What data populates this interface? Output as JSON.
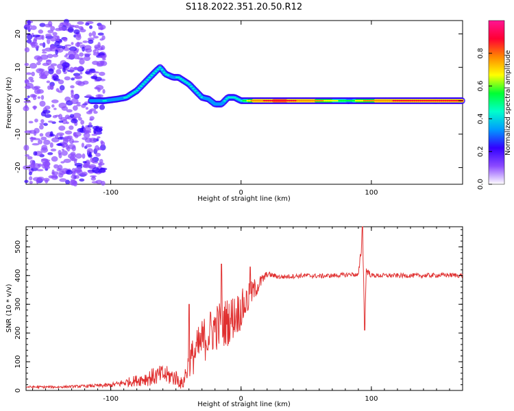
{
  "title": "S118.2022.351.20.50.R12",
  "chart_data": [
    {
      "type": "heatmap",
      "xlabel": "Height of straight line (km)",
      "ylabel": "Frequency (Hz)",
      "xlim": [
        -165,
        170
      ],
      "ylim": [
        -25,
        24
      ],
      "x_ticks": [
        -100,
        0,
        100
      ],
      "y_ticks": [
        -20,
        -10,
        0,
        10,
        20
      ],
      "colorbar": {
        "label": "Normalized spectral amplitude",
        "range": [
          0,
          1
        ],
        "ticks": [
          "0.0",
          "0.2",
          "0.4",
          "0.6",
          "0.8"
        ],
        "colormap": [
          "#ffffff",
          "#8c4bff",
          "#3300ff",
          "#0099ff",
          "#00ffcc",
          "#00ff33",
          "#ffff00",
          "#ff8800",
          "#ff0033",
          "#ff1493"
        ]
      },
      "dominant_frequency_ridge": {
        "x": [
          -115,
          -105,
          -95,
          -88,
          -80,
          -75,
          -70,
          -65,
          -62,
          -58,
          -52,
          -48,
          -44,
          -40,
          -35,
          -30,
          -25,
          -20,
          -15,
          -10,
          -5,
          0,
          10,
          30,
          60,
          85,
          90,
          120,
          170
        ],
        "y": [
          0,
          0,
          0.5,
          1,
          3,
          5,
          7,
          9,
          10,
          8,
          7,
          7,
          6,
          5,
          3,
          1,
          0.5,
          -1,
          -1,
          1,
          1,
          0,
          0,
          0,
          0,
          0,
          0,
          0,
          0
        ],
        "amplitude": [
          0.3,
          0.4,
          0.35,
          0.4,
          0.45,
          0.5,
          0.45,
          0.45,
          0.4,
          0.45,
          0.35,
          0.45,
          0.4,
          0.5,
          0.45,
          0.4,
          0.35,
          0.3,
          0.35,
          0.45,
          0.5,
          0.45,
          0.8,
          0.9,
          0.75,
          0.5,
          0.7,
          0.85,
          0.85
        ]
      }
    },
    {
      "type": "line",
      "xlabel": "Height of straight line (km)",
      "ylabel": "SNR (10 * v/v)",
      "xlim": [
        -165,
        170
      ],
      "ylim": [
        0,
        570
      ],
      "x_ticks": [
        -100,
        0,
        100
      ],
      "y_ticks": [
        0,
        100,
        200,
        300,
        400,
        500
      ],
      "series": [
        {
          "color": "#e03030",
          "x": [
            -165,
            -140,
            -120,
            -100,
            -80,
            -70,
            -60,
            -50,
            -45,
            -40,
            -30,
            -20,
            -10,
            0,
            10,
            20,
            30,
            40,
            50,
            60,
            70,
            80,
            85,
            90,
            92,
            93,
            94,
            95,
            96,
            100,
            120,
            140,
            160,
            170
          ],
          "y": [
            12,
            12,
            15,
            18,
            35,
            45,
            55,
            45,
            20,
            95,
            170,
            220,
            240,
            280,
            350,
            405,
            395,
            398,
            400,
            398,
            400,
            402,
            405,
            400,
            480,
            540,
            390,
            210,
            420,
            400,
            400,
            400,
            402,
            400
          ],
          "noise_amplitude": [
            4,
            4,
            5,
            8,
            20,
            30,
            35,
            30,
            20,
            60,
            80,
            85,
            85,
            70,
            40,
            10,
            8,
            8,
            8,
            8,
            8,
            8,
            8,
            8,
            20,
            25,
            25,
            20,
            15,
            8,
            8,
            8,
            8,
            8
          ]
        }
      ],
      "spikes": [
        {
          "x": -15,
          "y": 440
        },
        {
          "x": 7,
          "y": 430
        },
        {
          "x": -40,
          "y": 300
        },
        {
          "x": 93,
          "y": 570
        },
        {
          "x": 95,
          "y": 210
        }
      ]
    }
  ]
}
